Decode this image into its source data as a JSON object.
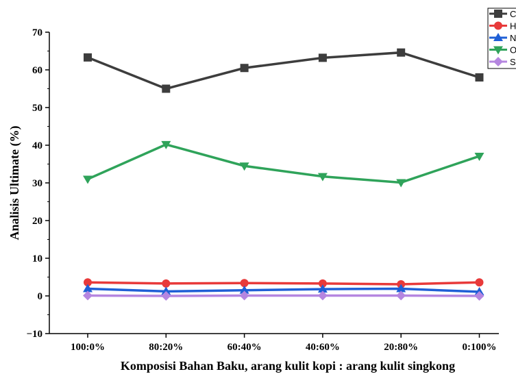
{
  "chart_data": {
    "type": "line",
    "categories": [
      "100:0%",
      "80:20%",
      "60:40%",
      "40:60%",
      "20:80%",
      "0:100%"
    ],
    "xlabel": "Komposisi Bahan Baku, arang kulit kopi : arang kulit singkong",
    "ylabel": "Analisis Ultimate (%)",
    "ylim": [
      -10,
      70
    ],
    "yticks": [
      -10,
      0,
      10,
      20,
      30,
      40,
      50,
      60,
      70
    ],
    "grid": false,
    "legend_position": "top-right",
    "series": [
      {
        "name": "C",
        "color": "#3d3d3d",
        "marker": "square",
        "values": [
          63.3,
          55.0,
          60.5,
          63.2,
          64.6,
          58.0
        ]
      },
      {
        "name": "H",
        "color": "#e83a3a",
        "marker": "circle",
        "values": [
          3.6,
          3.3,
          3.4,
          3.3,
          3.1,
          3.6
        ]
      },
      {
        "name": "N",
        "color": "#1f5fd6",
        "marker": "triangle-up",
        "values": [
          1.9,
          1.2,
          1.5,
          1.8,
          1.9,
          1.1
        ]
      },
      {
        "name": "O",
        "color": "#2fa35a",
        "marker": "triangle-down",
        "values": [
          31.0,
          40.2,
          34.5,
          31.7,
          30.1,
          37.1
        ]
      },
      {
        "name": "S",
        "color": "#b586e0",
        "marker": "diamond",
        "values": [
          0.1,
          0.0,
          0.1,
          0.1,
          0.1,
          0.0
        ]
      }
    ]
  }
}
